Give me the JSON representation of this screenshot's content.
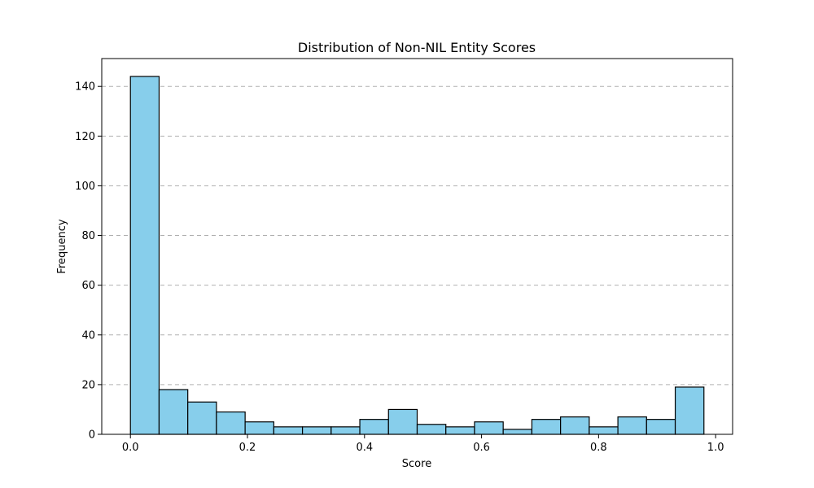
{
  "chart_data": {
    "type": "bar",
    "title": "Distribution of Non-NIL Entity Scores",
    "xlabel": "Score",
    "ylabel": "Frequency",
    "bin_edges": [
      0.0,
      0.049,
      0.098,
      0.147,
      0.196,
      0.245,
      0.294,
      0.343,
      0.392,
      0.441,
      0.49,
      0.539,
      0.588,
      0.637,
      0.686,
      0.735,
      0.784,
      0.833,
      0.882,
      0.931,
      0.98
    ],
    "values": [
      144,
      18,
      13,
      9,
      5,
      3,
      3,
      3,
      6,
      10,
      4,
      3,
      5,
      2,
      6,
      7,
      3,
      7,
      6,
      19
    ],
    "xlim": [
      -0.049,
      1.029
    ],
    "ylim": [
      0,
      151.2
    ],
    "xticks": [
      0.0,
      0.2,
      0.4,
      0.6,
      0.8,
      1.0
    ],
    "xtick_labels": [
      "0.0",
      "0.2",
      "0.4",
      "0.6",
      "0.8",
      "1.0"
    ],
    "yticks": [
      0,
      20,
      40,
      60,
      80,
      100,
      120,
      140
    ],
    "ytick_labels": [
      "0",
      "20",
      "40",
      "60",
      "80",
      "100",
      "120",
      "140"
    ],
    "grid": "y-dashed",
    "bar_color": "#87CEEB",
    "edge_color": "#000000"
  }
}
